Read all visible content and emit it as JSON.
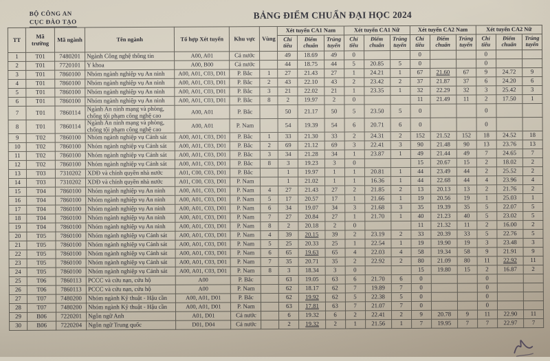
{
  "letterhead": {
    "line1": "BỘ CÔNG AN",
    "line2": "CỤC ĐÀO TẠO"
  },
  "title": "BẢNG ĐIỂM CHUẨN ĐẠI HỌC 2024",
  "colors": {
    "ink": "#26262e",
    "title-ink": "#32323a",
    "line": "#5e5b53",
    "paper-light": "#d5cfc0",
    "paper-dark": "#ab9f8d"
  },
  "table": {
    "columns": [
      "TT",
      "Mã trường",
      "Mã ngành",
      "Tên ngành",
      "Tổ hợp Xét tuyển",
      "Khu vực",
      "Vùng"
    ],
    "groups": [
      "Xét tuyển CA1 Nam",
      "Xét tuyển CA1 Nữ",
      "Xét tuyển CA2 Nam",
      "Xét tuyển CA2 Nữ"
    ],
    "subcolumns": [
      "Chỉ tiêu",
      "Điểm chuẩn",
      "Trúng tuyển"
    ],
    "rows": [
      {
        "tt": "1",
        "school": "T01",
        "major": "7480201",
        "name": "Ngành Công nghệ thông tin",
        "combo": "A00, A01",
        "region": "Cả nước",
        "zone": "",
        "cells": [
          "49",
          "18.69",
          "49",
          "0",
          "",
          "",
          "0",
          "",
          "",
          "0",
          "",
          ""
        ],
        "u": []
      },
      {
        "tt": "2",
        "school": "T01",
        "major": "7720101",
        "name": "Y khoa",
        "combo": "A00, B00",
        "region": "Cả nước",
        "zone": "",
        "cells": [
          "44",
          "18.75",
          "44",
          "5",
          "20.85",
          "5",
          "0",
          "",
          "",
          "0",
          "",
          ""
        ],
        "u": []
      },
      {
        "tt": "3",
        "school": "T01",
        "major": "7860100",
        "name": "Nhóm ngành nghiệp vụ An ninh",
        "combo": "A00, A01, C03, D01",
        "region": "P. Bắc",
        "zone": "1",
        "cells": [
          "27",
          "21.43",
          "27",
          "1",
          "24.21",
          "1",
          "67",
          "21.60",
          "67",
          "9",
          "24.72",
          "9"
        ],
        "u": [
          7
        ]
      },
      {
        "tt": "4",
        "school": "T01",
        "major": "7860100",
        "name": "Nhóm ngành nghiệp vụ An ninh",
        "combo": "A00, A01, C03, D01",
        "region": "P. Bắc",
        "zone": "2",
        "cells": [
          "43",
          "22.10",
          "43",
          "2",
          "23.42",
          "2",
          "37",
          "21.87",
          "37",
          "6",
          "24.20",
          "6"
        ],
        "u": []
      },
      {
        "tt": "5",
        "school": "T01",
        "major": "7860100",
        "name": "Nhóm ngành nghiệp vụ An ninh",
        "combo": "A00, A01, C03, D01",
        "region": "P. Bắc",
        "zone": "3",
        "cells": [
          "21",
          "22.02",
          "21",
          "1",
          "23.35",
          "1",
          "32",
          "22.29",
          "32",
          "3",
          "25.42",
          "3"
        ],
        "u": []
      },
      {
        "tt": "6",
        "school": "T01",
        "major": "7860100",
        "name": "Nhóm ngành nghiệp vụ An ninh",
        "combo": "A00, A01, C03, D01",
        "region": "P. Bắc",
        "zone": "8",
        "cells": [
          "2",
          "19.97",
          "2",
          "0",
          "",
          "",
          "11",
          "21.49",
          "11",
          "2",
          "17.50",
          "1"
        ],
        "u": []
      },
      {
        "tt": "7",
        "school": "T01",
        "major": "7860114",
        "name": "Ngành An ninh mạng và phòng, chống tội phạm công nghệ cao",
        "combo": "A00, A01",
        "region": "P. Bắc",
        "zone": "",
        "cells": [
          "50",
          "21.17",
          "50",
          "5",
          "23.50",
          "5",
          "0",
          "",
          "",
          "0",
          "",
          ""
        ],
        "u": []
      },
      {
        "tt": "8",
        "school": "T01",
        "major": "7860114",
        "name": "Ngành An ninh mạng và phòng, chống tội phạm công nghệ cao",
        "combo": "A00, A01",
        "region": "P. Nam",
        "zone": "",
        "cells": [
          "54",
          "19.39",
          "54",
          "6",
          "20.71",
          "6",
          "0",
          "",
          "",
          "0",
          "",
          ""
        ],
        "u": []
      },
      {
        "tt": "9",
        "school": "T02",
        "major": "7860100",
        "name": "Nhóm ngành nghiệp vụ Cảnh sát",
        "combo": "A00, A01, C03, D01",
        "region": "P. Bắc",
        "zone": "1",
        "cells": [
          "33",
          "21.30",
          "33",
          "2",
          "24.31",
          "2",
          "152",
          "21.52",
          "152",
          "18",
          "24.52",
          "18"
        ],
        "u": []
      },
      {
        "tt": "10",
        "school": "T02",
        "major": "7860100",
        "name": "Nhóm ngành nghiệp vụ Cảnh sát",
        "combo": "A00, A01, C03, D01",
        "region": "P. Bắc",
        "zone": "2",
        "cells": [
          "69",
          "21.12",
          "69",
          "3",
          "22.41",
          "3",
          "90",
          "21.48",
          "90",
          "13",
          "23.76",
          "13"
        ],
        "u": []
      },
      {
        "tt": "11",
        "school": "T02",
        "major": "7860100",
        "name": "Nhóm ngành nghiệp vụ Cảnh sát",
        "combo": "A00, A01, C03, D01",
        "region": "P. Bắc",
        "zone": "3",
        "cells": [
          "34",
          "21.28",
          "34",
          "1",
          "23.87",
          "1",
          "49",
          "21.44",
          "49",
          "7",
          "24.65",
          "7"
        ],
        "u": []
      },
      {
        "tt": "12",
        "school": "T02",
        "major": "7860100",
        "name": "Nhóm ngành nghiệp vụ Cảnh sát",
        "combo": "A00, A01, C03, D01",
        "region": "P. Bắc",
        "zone": "8",
        "cells": [
          "3",
          "19.23",
          "3",
          "0",
          "",
          "",
          "15",
          "20.67",
          "15",
          "2",
          "18.02",
          "2"
        ],
        "u": []
      },
      {
        "tt": "13",
        "school": "T03",
        "major": "7310202",
        "name": "XDĐ và chính quyền nhà nước",
        "combo": "A01, C00, C03, D01",
        "region": "P. Bắc",
        "zone": "",
        "cells": [
          "1",
          "19.97",
          "1",
          "1",
          "20.81",
          "1",
          "44",
          "23.49",
          "44",
          "2",
          "25.52",
          "2"
        ],
        "u": []
      },
      {
        "tt": "14",
        "school": "T03",
        "major": "7310202",
        "name": "XDĐ và chính quyền nhà nước",
        "combo": "A01, C00, C03, D01",
        "region": "P. Nam",
        "zone": "",
        "cells": [
          "1",
          "21.02",
          "1",
          "1",
          "16.36",
          "1",
          "44",
          "22.68",
          "44",
          "4",
          "23.96",
          "4"
        ],
        "u": []
      },
      {
        "tt": "15",
        "school": "T04",
        "major": "7860100",
        "name": "Nhóm ngành nghiệp vụ An ninh",
        "combo": "A00, A01, C03, D01",
        "region": "P. Nam",
        "zone": "4",
        "cells": [
          "27",
          "21.43",
          "27",
          "2",
          "21.85",
          "2",
          "13",
          "20.13",
          "13",
          "2",
          "21.76",
          "2"
        ],
        "u": []
      },
      {
        "tt": "16",
        "school": "T04",
        "major": "7860100",
        "name": "Nhóm ngành nghiệp vụ An ninh",
        "combo": "A00, A01, C03, D01",
        "region": "P. Nam",
        "zone": "5",
        "cells": [
          "17",
          "20.57",
          "17",
          "1",
          "21.66",
          "1",
          "19",
          "20.56",
          "19",
          "1",
          "25.03",
          "1"
        ],
        "u": []
      },
      {
        "tt": "17",
        "school": "T04",
        "major": "7860100",
        "name": "Nhóm ngành nghiệp vụ An ninh",
        "combo": "A00, A01, C03, D01",
        "region": "P. Nam",
        "zone": "6",
        "cells": [
          "34",
          "19.07",
          "34",
          "3",
          "21.68",
          "3",
          "35",
          "19.39",
          "35",
          "5",
          "22.07",
          "5"
        ],
        "u": []
      },
      {
        "tt": "18",
        "school": "T04",
        "major": "7860100",
        "name": "Nhóm ngành nghiệp vụ An ninh",
        "combo": "A00, A01, C03, D01",
        "region": "P. Nam",
        "zone": "7",
        "cells": [
          "27",
          "20.84",
          "27",
          "1",
          "21.70",
          "1",
          "40",
          "21.23",
          "40",
          "5",
          "23.02",
          "5"
        ],
        "u": []
      },
      {
        "tt": "19",
        "school": "T04",
        "major": "7860100",
        "name": "Nhóm ngành nghiệp vụ An ninh",
        "combo": "A00, A01, C03, D01",
        "region": "P. Nam",
        "zone": "8",
        "cells": [
          "2",
          "20.18",
          "2",
          "0",
          "",
          "",
          "11",
          "21.32",
          "11",
          "2",
          "16.00",
          "2"
        ],
        "u": []
      },
      {
        "tt": "20",
        "school": "T05",
        "major": "7860100",
        "name": "Nhóm ngành nghiệp vụ Cảnh sát",
        "combo": "A00, A01, C03, D01",
        "region": "P. Nam",
        "zone": "4",
        "cells": [
          "39",
          "20.15",
          "39",
          "2",
          "23.19",
          "2",
          "33",
          "20.39",
          "33",
          "5",
          "22.76",
          "5"
        ],
        "u": [
          1
        ]
      },
      {
        "tt": "21",
        "school": "T05",
        "major": "7860100",
        "name": "Nhóm ngành nghiệp vụ Cảnh sát",
        "combo": "A00, A01, C03, D01",
        "region": "P. Nam",
        "zone": "5",
        "cells": [
          "25",
          "20.33",
          "25",
          "1",
          "22.54",
          "1",
          "19",
          "19.90",
          "19",
          "3",
          "23.48",
          "3"
        ],
        "u": []
      },
      {
        "tt": "22",
        "school": "T05",
        "major": "7860100",
        "name": "Nhóm ngành nghiệp vụ Cảnh sát",
        "combo": "A00, A01, C03, D01",
        "region": "P. Nam",
        "zone": "6",
        "cells": [
          "65",
          "19.63",
          "65",
          "4",
          "22.03",
          "4",
          "58",
          "19.34",
          "58",
          "9",
          "21.91",
          "9"
        ],
        "u": [
          1
        ]
      },
      {
        "tt": "23",
        "school": "T05",
        "major": "7860100",
        "name": "Nhóm ngành nghiệp vụ Cảnh sát",
        "combo": "A00, A01, C03, D01",
        "region": "P. Nam",
        "zone": "7",
        "cells": [
          "35",
          "20.71",
          "35",
          "2",
          "22.92",
          "2",
          "80",
          "21.09",
          "80",
          "11",
          "22.92",
          "11"
        ],
        "u": [
          10
        ]
      },
      {
        "tt": "24",
        "school": "T05",
        "major": "7860100",
        "name": "Nhóm ngành nghiệp vụ Cảnh sát",
        "combo": "A00, A01, C03, D01",
        "region": "P. Nam",
        "zone": "8",
        "cells": [
          "3",
          "18.34",
          "3",
          "0",
          "",
          "",
          "15",
          "19.80",
          "15",
          "2",
          "16.87",
          "2"
        ],
        "u": []
      },
      {
        "tt": "25",
        "school": "T06",
        "major": "7860113",
        "name": "PCCC và cứu nạn, cứu hộ",
        "combo": "A00",
        "region": "P. Bắc",
        "zone": "",
        "cells": [
          "63",
          "19.05",
          "63",
          "6",
          "21.70",
          "6",
          "0",
          "",
          "",
          "0",
          "",
          ""
        ],
        "u": []
      },
      {
        "tt": "26",
        "school": "T06",
        "major": "7860113",
        "name": "PCCC và cứu nạn, cứu hộ",
        "combo": "A00",
        "region": "P. Nam",
        "zone": "",
        "cells": [
          "62",
          "18.17",
          "62",
          "7",
          "19.89",
          "7",
          "0",
          "",
          "",
          "0",
          "",
          ""
        ],
        "u": []
      },
      {
        "tt": "27",
        "school": "T07",
        "major": "7480200",
        "name": "Nhóm ngành Kỹ thuật - Hậu cần",
        "combo": "A00, A01, D01",
        "region": "P. Bắc",
        "zone": "",
        "cells": [
          "62",
          "19.92",
          "62",
          "5",
          "22.38",
          "5",
          "0",
          "",
          "",
          "0",
          "",
          ""
        ],
        "u": [
          1
        ]
      },
      {
        "tt": "28",
        "school": "T07",
        "major": "7480200",
        "name": "Nhóm ngành Kỹ thuật - Hậu cần",
        "combo": "A00, A01, D01",
        "region": "P. Nam",
        "zone": "",
        "cells": [
          "63",
          "17.81",
          "63",
          "7",
          "21.07",
          "7",
          "0",
          "",
          "",
          "0",
          "",
          ""
        ],
        "u": [
          1
        ]
      },
      {
        "tt": "29",
        "school": "B06",
        "major": "7220201",
        "name": "Ngôn ngữ Anh",
        "combo": "A01, D01",
        "region": "Cả nước",
        "zone": "",
        "cells": [
          "6",
          "19.32",
          "6",
          "2",
          "22.41",
          "2",
          "9",
          "20.78",
          "9",
          "11",
          "22.90",
          "11"
        ],
        "u": []
      },
      {
        "tt": "30",
        "school": "B06",
        "major": "7220204",
        "name": "Ngôn ngữ Trung quốc",
        "combo": "D01, D04",
        "region": "Cả nước",
        "zone": "",
        "cells": [
          "2",
          "19.32",
          "2",
          "1",
          "21.56",
          "1",
          "7",
          "19.95",
          "7",
          "7",
          "22.97",
          "7"
        ],
        "u": [
          1
        ]
      }
    ]
  }
}
